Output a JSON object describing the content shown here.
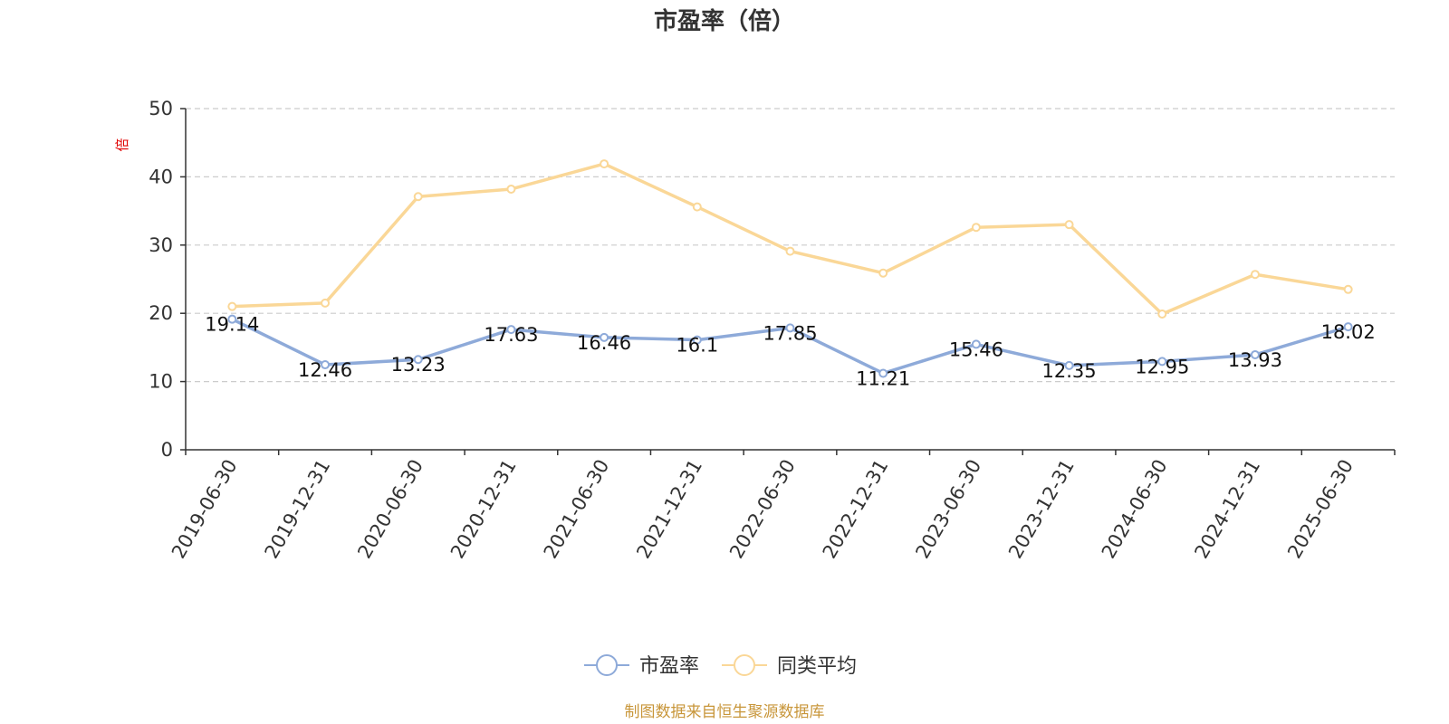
{
  "chart_data": {
    "type": "line",
    "title": "市盈率（倍）",
    "ylabel": "倍",
    "ylim": [
      0,
      50
    ],
    "yticks": [
      0,
      10,
      20,
      30,
      40,
      50
    ],
    "grid": true,
    "legend_position": "bottom-center",
    "x": [
      "2019-06-30",
      "2019-12-31",
      "2020-06-30",
      "2020-12-31",
      "2021-06-30",
      "2021-12-31",
      "2022-06-30",
      "2022-12-31",
      "2023-06-30",
      "2023-12-31",
      "2024-06-30",
      "2024-12-31",
      "2025-06-30"
    ],
    "series": [
      {
        "name": "市盈率",
        "color": "#8eaad9",
        "values": [
          19.14,
          12.46,
          13.23,
          17.63,
          16.46,
          16.1,
          17.85,
          11.21,
          15.46,
          12.35,
          12.95,
          13.93,
          18.02
        ],
        "labels": [
          "19.14",
          "12.46",
          "13.23",
          "17.63",
          "16.46",
          "16.1",
          "17.85",
          "11.21",
          "15.46",
          "12.35",
          "12.95",
          "13.93",
          "18.02"
        ]
      },
      {
        "name": "同类平均",
        "color": "#fad797",
        "values": [
          21.0,
          21.5,
          37.1,
          38.2,
          41.9,
          35.6,
          29.1,
          25.9,
          32.6,
          33.0,
          19.9,
          25.7,
          23.5
        ]
      }
    ],
    "source": "制图数据来自恒生聚源数据库"
  }
}
